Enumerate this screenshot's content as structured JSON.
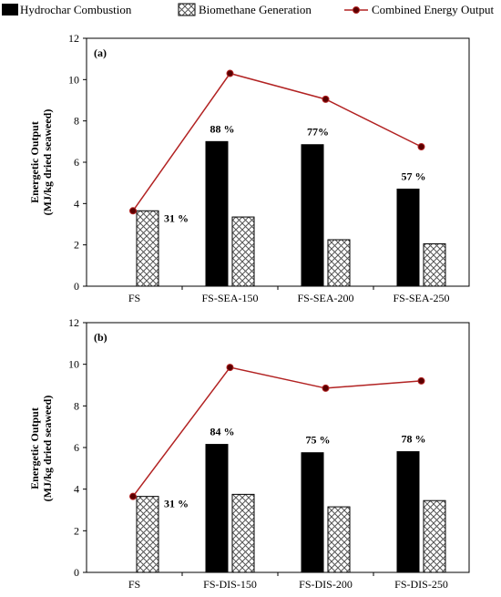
{
  "legend": [
    {
      "label": "Hydrochar Combustion",
      "kind": "solid"
    },
    {
      "label": "Biomethane Generation",
      "kind": "hatched"
    },
    {
      "label": "Combined Energy Output",
      "kind": "line"
    }
  ],
  "colors": {
    "bar_solid": "#000000",
    "hatch": "#555555",
    "line": "#b22222",
    "marker": "#5a0000"
  },
  "chart_data": [
    {
      "type": "bar",
      "panel_label": "(a)",
      "ylabel_line1": "Energetic Output",
      "ylabel_line2": "(MJ/kg dried seaweed)",
      "ylim": [
        0,
        12
      ],
      "yticks": [
        "0",
        "2",
        "4",
        "6",
        "8",
        "10",
        "12"
      ],
      "categories": [
        "FS",
        "FS-SEA-150",
        "FS-SEA-200",
        "FS-SEA-250"
      ],
      "series": [
        {
          "name": "Hydrochar Combustion",
          "values": [
            0,
            7.0,
            6.85,
            4.7
          ]
        },
        {
          "name": "Biomethane Generation",
          "values": [
            3.65,
            3.35,
            2.25,
            2.05
          ]
        },
        {
          "name": "Combined Energy Output",
          "values": [
            3.65,
            10.3,
            9.05,
            6.75
          ]
        }
      ],
      "annotations": [
        "31 %",
        "88 %",
        "77%",
        "57 %"
      ]
    },
    {
      "type": "bar",
      "panel_label": "(b)",
      "ylabel_line1": "Energetic Output",
      "ylabel_line2": "(MJ/kg dried seaweed)",
      "ylim": [
        0,
        12
      ],
      "yticks": [
        "0",
        "2",
        "4",
        "6",
        "8",
        "10",
        "12"
      ],
      "categories": [
        "FS",
        "FS-DIS-150",
        "FS-DIS-200",
        "FS-DIS-250"
      ],
      "series": [
        {
          "name": "Hydrochar Combustion",
          "values": [
            0,
            6.15,
            5.75,
            5.8
          ]
        },
        {
          "name": "Biomethane Generation",
          "values": [
            3.65,
            3.75,
            3.15,
            3.45
          ]
        },
        {
          "name": "Combined Energy Output",
          "values": [
            3.65,
            9.85,
            8.85,
            9.2
          ]
        }
      ],
      "annotations": [
        "31 %",
        "84 %",
        "75 %",
        "78 %"
      ]
    }
  ]
}
